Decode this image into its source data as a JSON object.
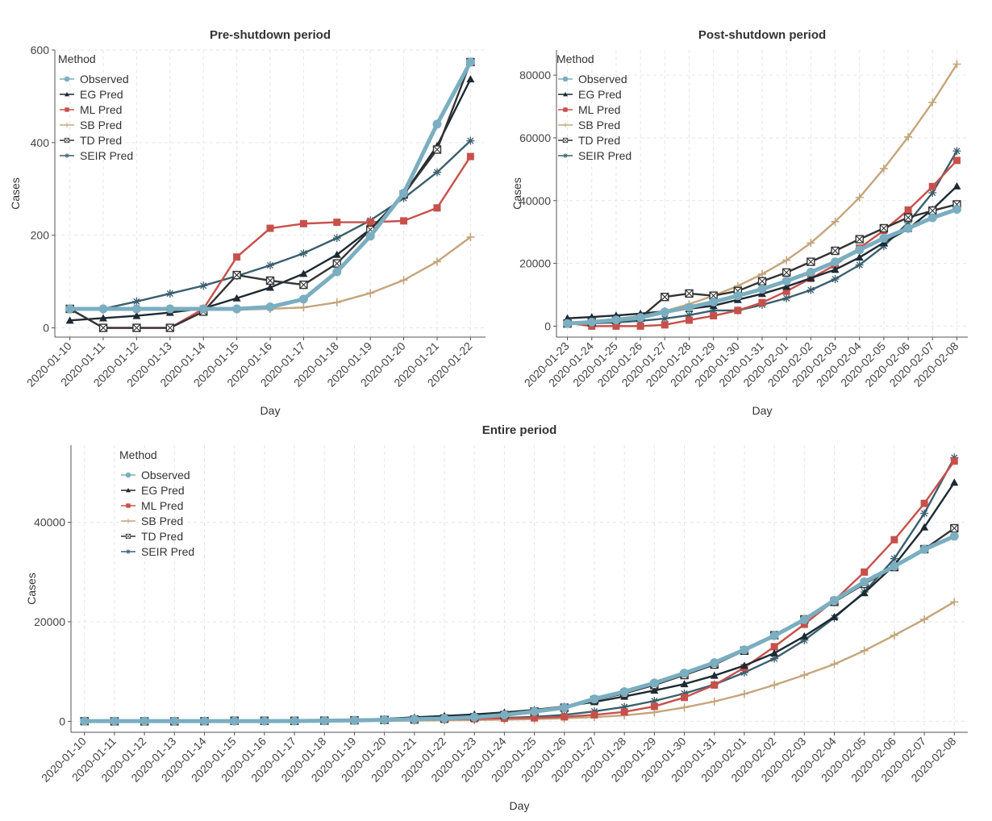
{
  "colors": {
    "Observed": "#7aaec0",
    "EG Pred": "#1e2a33",
    "ML Pred": "#c7504b",
    "SB Pred": "#c4a57c",
    "TD Pred": "#333333",
    "SEIR Pred": "#3a5f6e",
    "grid": "#e6e6e6",
    "axis": "#555555"
  },
  "chart_data": [
    {
      "type": "line",
      "title": "Pre-shutdown period",
      "xlabel": "Day",
      "ylabel": "Cases",
      "ylim": [
        -20,
        600
      ],
      "yticks": [
        0,
        200,
        400,
        600
      ],
      "grid": true,
      "legend_title": "Method",
      "legend_position": "top-left",
      "x": [
        "2020-01-10",
        "2020-01-11",
        "2020-01-12",
        "2020-01-13",
        "2020-01-14",
        "2020-01-15",
        "2020-01-16",
        "2020-01-17",
        "2020-01-18",
        "2020-01-19",
        "2020-01-20",
        "2020-01-21",
        "2020-01-22"
      ],
      "series": [
        {
          "name": "Observed",
          "marker": "circle",
          "values": [
            41,
            41,
            41,
            41,
            41,
            41,
            45,
            62,
            121,
            198,
            291,
            440,
            574
          ]
        },
        {
          "name": "EG Pred",
          "marker": "triangle",
          "values": [
            16,
            21,
            26,
            33,
            42,
            64,
            87,
            117,
            158,
            213,
            288,
            393,
            537
          ]
        },
        {
          "name": "ML Pred",
          "marker": "square",
          "values": [
            41,
            0,
            0,
            0,
            41,
            153,
            215,
            225,
            228,
            228,
            231,
            259,
            370
          ]
        },
        {
          "name": "SB Pred",
          "marker": "plus",
          "values": [
            39,
            39,
            39,
            39,
            39,
            39,
            41,
            44,
            55,
            75,
            103,
            143,
            196
          ]
        },
        {
          "name": "TD Pred",
          "marker": "boxcross",
          "values": [
            41,
            0,
            0,
            0,
            35,
            114,
            102,
            93,
            139,
            212,
            288,
            385,
            574
          ]
        },
        {
          "name": "SEIR Pred",
          "marker": "star",
          "values": [
            41,
            41,
            57,
            74,
            91,
            112,
            135,
            161,
            194,
            232,
            280,
            336,
            404
          ]
        }
      ]
    },
    {
      "type": "line",
      "title": "Post-shutdown period",
      "xlabel": "Day",
      "ylabel": "Cases",
      "ylim": [
        -3500,
        88000
      ],
      "yticks": [
        0,
        20000,
        40000,
        60000,
        80000
      ],
      "grid": true,
      "legend_title": "Method",
      "legend_position": "top-left",
      "x": [
        "2020-01-23",
        "2020-01-24",
        "2020-01-25",
        "2020-01-26",
        "2020-01-27",
        "2020-01-28",
        "2020-01-29",
        "2020-01-30",
        "2020-01-31",
        "2020-02-01",
        "2020-02-02",
        "2020-02-03",
        "2020-02-04",
        "2020-02-05",
        "2020-02-06",
        "2020-02-07",
        "2020-02-08"
      ],
      "series": [
        {
          "name": "Observed",
          "marker": "circle",
          "values": [
            830,
            1287,
            1975,
            2744,
            4515,
            5974,
            7711,
            9692,
            11791,
            14380,
            17205,
            20438,
            24324,
            28018,
            31161,
            34546,
            37198
          ]
        },
        {
          "name": "EG Pred",
          "marker": "triangle",
          "values": [
            2500,
            2900,
            3400,
            4000,
            4700,
            5500,
            6500,
            8400,
            10300,
            12600,
            15300,
            18000,
            21900,
            26600,
            31000,
            37200,
            44600
          ]
        },
        {
          "name": "ML Pred",
          "marker": "square",
          "values": [
            1000,
            0,
            0,
            0,
            400,
            1900,
            3300,
            5000,
            7500,
            11100,
            15200,
            19500,
            24900,
            30500,
            37000,
            44500,
            52800
          ]
        },
        {
          "name": "SB Pred",
          "marker": "plus",
          "values": [
            900,
            1500,
            2300,
            3300,
            4800,
            7000,
            9700,
            12800,
            16600,
            21000,
            26500,
            33300,
            41000,
            50200,
            60300,
            71300,
            83500
          ]
        },
        {
          "name": "TD Pred",
          "marker": "boxcross",
          "values": [
            830,
            1287,
            1975,
            2744,
            9300,
            10400,
            9700,
            11200,
            14300,
            17100,
            20500,
            24000,
            27700,
            31200,
            34600,
            36800,
            38800
          ]
        },
        {
          "name": "SEIR Pred",
          "marker": "star",
          "values": [
            800,
            900,
            1200,
            1700,
            2400,
            3500,
            5000,
            5000,
            6800,
            8900,
            11500,
            15000,
            19500,
            25500,
            33000,
            42500,
            55800
          ]
        }
      ]
    },
    {
      "type": "line",
      "title": "Entire period",
      "xlabel": "Day",
      "ylabel": "Cases",
      "ylim": [
        -2200,
        55500
      ],
      "yticks": [
        0,
        20000,
        40000
      ],
      "grid": true,
      "legend_title": "Method",
      "legend_position": "top-left",
      "x": [
        "2020-01-10",
        "2020-01-11",
        "2020-01-12",
        "2020-01-13",
        "2020-01-14",
        "2020-01-15",
        "2020-01-16",
        "2020-01-17",
        "2020-01-18",
        "2020-01-19",
        "2020-01-20",
        "2020-01-21",
        "2020-01-22",
        "2020-01-23",
        "2020-01-24",
        "2020-01-25",
        "2020-01-26",
        "2020-01-27",
        "2020-01-28",
        "2020-01-29",
        "2020-01-30",
        "2020-01-31",
        "2020-02-01",
        "2020-02-02",
        "2020-02-03",
        "2020-02-04",
        "2020-02-05",
        "2020-02-06",
        "2020-02-07",
        "2020-02-08"
      ],
      "series": [
        {
          "name": "Observed",
          "marker": "circle",
          "values": [
            41,
            41,
            41,
            41,
            41,
            41,
            45,
            62,
            121,
            198,
            291,
            440,
            574,
            830,
            1287,
            1975,
            2744,
            4515,
            5974,
            7711,
            9692,
            11791,
            14380,
            17205,
            20438,
            24324,
            28018,
            31161,
            34546,
            37198
          ]
        },
        {
          "name": "EG Pred",
          "marker": "triangle",
          "values": [
            16,
            21,
            26,
            33,
            42,
            64,
            87,
            117,
            158,
            300,
            500,
            800,
            1100,
            1400,
            1800,
            2300,
            3000,
            3900,
            5000,
            6200,
            7500,
            9200,
            11200,
            13700,
            17100,
            21000,
            25800,
            31400,
            39000,
            48000
          ]
        },
        {
          "name": "ML Pred",
          "marker": "square",
          "values": [
            41,
            0,
            0,
            0,
            41,
            153,
            215,
            225,
            228,
            228,
            231,
            259,
            370,
            500,
            600,
            700,
            900,
            1300,
            1900,
            3000,
            4800,
            7300,
            10800,
            15000,
            19500,
            24300,
            30000,
            36500,
            43800,
            52300
          ]
        },
        {
          "name": "SB Pred",
          "marker": "plus",
          "values": [
            39,
            39,
            39,
            39,
            39,
            39,
            41,
            44,
            55,
            75,
            103,
            143,
            196,
            260,
            340,
            440,
            600,
            850,
            1200,
            1800,
            2800,
            4000,
            5500,
            7300,
            9300,
            11500,
            14200,
            17300,
            20500,
            24000
          ]
        },
        {
          "name": "TD Pred",
          "marker": "boxcross",
          "values": [
            41,
            0,
            0,
            0,
            35,
            114,
            102,
            93,
            139,
            212,
            288,
            385,
            574,
            830,
            1287,
            1975,
            2744,
            4300,
            5600,
            7300,
            9300,
            11400,
            14200,
            17300,
            20500,
            24000,
            27600,
            31000,
            34600,
            38800
          ]
        },
        {
          "name": "SEIR Pred",
          "marker": "star",
          "values": [
            41,
            41,
            57,
            74,
            91,
            112,
            135,
            161,
            194,
            232,
            280,
            336,
            404,
            500,
            700,
            900,
            1300,
            2000,
            2900,
            4100,
            5600,
            7400,
            9800,
            12600,
            16300,
            20800,
            26000,
            32700,
            41800,
            53000
          ]
        }
      ]
    }
  ]
}
